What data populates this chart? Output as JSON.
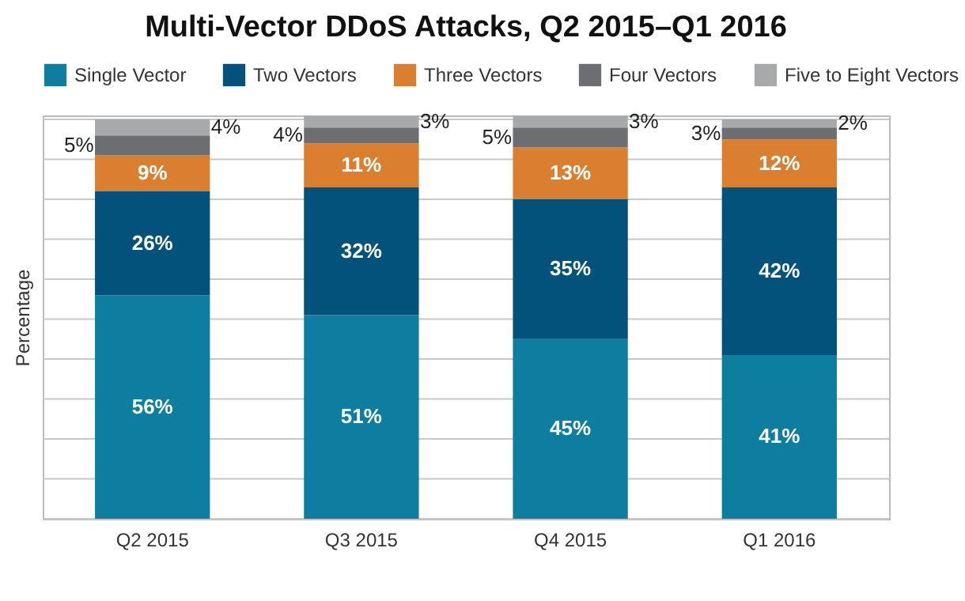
{
  "chart_data": {
    "type": "bar",
    "stacked": true,
    "title": "Multi-Vector DDoS Attacks, Q2 2015–Q1 2016",
    "ylabel": "Percentage",
    "categories": [
      "Q2 2015",
      "Q3 2015",
      "Q4 2015",
      "Q1 2016"
    ],
    "series": [
      {
        "name": "Single Vector",
        "color": "#0e7ea0",
        "values": [
          56,
          51,
          45,
          41
        ],
        "value_labels": [
          "56%",
          "51%",
          "45%",
          "41%"
        ]
      },
      {
        "name": "Two Vectors",
        "color": "#02527c",
        "values": [
          26,
          32,
          35,
          42
        ],
        "value_labels": [
          "26%",
          "32%",
          "35%",
          "42%"
        ]
      },
      {
        "name": "Three Vectors",
        "color": "#d97f2f",
        "values": [
          9,
          11,
          13,
          12
        ],
        "value_labels": [
          "9%",
          "11%",
          "13%",
          "12%"
        ]
      },
      {
        "name": "Four Vectors",
        "color": "#6d6e71",
        "values": [
          5,
          4,
          5,
          3
        ],
        "value_labels": [
          "5%",
          "4%",
          "5%",
          "3%"
        ]
      },
      {
        "name": "Five to Eight Vectors",
        "color": "#a7a9ab",
        "values": [
          4,
          3,
          3,
          2
        ],
        "value_labels": [
          "4%",
          "3%",
          "3%",
          "2%"
        ]
      }
    ],
    "ylim": [
      0,
      101
    ],
    "yticks": [
      {
        "value": 0,
        "label": null
      },
      {
        "value": 10,
        "label": null
      },
      {
        "value": 20,
        "label": null
      },
      {
        "value": 30,
        "label": null
      },
      {
        "value": 40,
        "label": null
      },
      {
        "value": 50,
        "label": null
      },
      {
        "value": 60,
        "label": null
      },
      {
        "value": 70,
        "label": null
      },
      {
        "value": 80,
        "label": null
      },
      {
        "value": 90,
        "label": null
      },
      {
        "value": 100,
        "label": null
      }
    ],
    "tick_labels": "x",
    "grid": "y",
    "legend": "top"
  }
}
